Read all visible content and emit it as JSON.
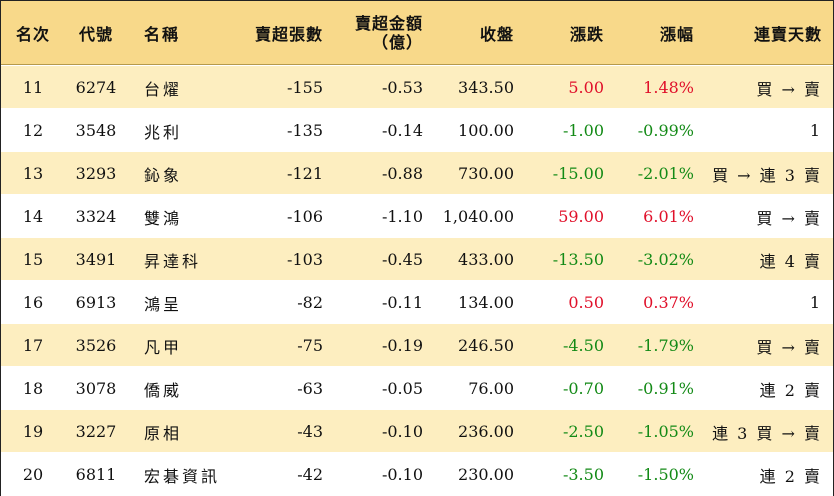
{
  "header": {
    "rank": "名次",
    "code": "代號",
    "name": "名稱",
    "sell_lots": "賣超張數",
    "sell_amount_line1": "賣超金額",
    "sell_amount_line2": "（億）",
    "close": "收盤",
    "change": "漲跌",
    "change_pct": "漲幅",
    "consecutive_days": "連賣天數"
  },
  "colors": {
    "header_bg": "#f8d98a",
    "odd_row_bg": "#fdeec0",
    "up": "#e0102a",
    "down": "#138a16"
  },
  "rows": [
    {
      "rank": "11",
      "code": "6274",
      "name": "台燿",
      "sell_lots": "-155",
      "sell_amount": "-0.53",
      "close": "343.50",
      "change": "5.00",
      "change_pct": "1.48%",
      "trend": "up",
      "consecutive": "買 → 賣"
    },
    {
      "rank": "12",
      "code": "3548",
      "name": "兆利",
      "sell_lots": "-135",
      "sell_amount": "-0.14",
      "close": "100.00",
      "change": "-1.00",
      "change_pct": "-0.99%",
      "trend": "down",
      "consecutive": "1"
    },
    {
      "rank": "13",
      "code": "3293",
      "name": "鈊象",
      "sell_lots": "-121",
      "sell_amount": "-0.88",
      "close": "730.00",
      "change": "-15.00",
      "change_pct": "-2.01%",
      "trend": "down",
      "consecutive": "買 → 連 3 賣"
    },
    {
      "rank": "14",
      "code": "3324",
      "name": "雙鴻",
      "sell_lots": "-106",
      "sell_amount": "-1.10",
      "close": "1,040.00",
      "change": "59.00",
      "change_pct": "6.01%",
      "trend": "up",
      "consecutive": "買 → 賣"
    },
    {
      "rank": "15",
      "code": "3491",
      "name": "昇達科",
      "sell_lots": "-103",
      "sell_amount": "-0.45",
      "close": "433.00",
      "change": "-13.50",
      "change_pct": "-3.02%",
      "trend": "down",
      "consecutive": "連 4 賣"
    },
    {
      "rank": "16",
      "code": "6913",
      "name": "鴻呈",
      "sell_lots": "-82",
      "sell_amount": "-0.11",
      "close": "134.00",
      "change": "0.50",
      "change_pct": "0.37%",
      "trend": "up",
      "consecutive": "1"
    },
    {
      "rank": "17",
      "code": "3526",
      "name": "凡甲",
      "sell_lots": "-75",
      "sell_amount": "-0.19",
      "close": "246.50",
      "change": "-4.50",
      "change_pct": "-1.79%",
      "trend": "down",
      "consecutive": "買 → 賣"
    },
    {
      "rank": "18",
      "code": "3078",
      "name": "僑威",
      "sell_lots": "-63",
      "sell_amount": "-0.05",
      "close": "76.00",
      "change": "-0.70",
      "change_pct": "-0.91%",
      "trend": "down",
      "consecutive": "連 2 賣"
    },
    {
      "rank": "19",
      "code": "3227",
      "name": "原相",
      "sell_lots": "-43",
      "sell_amount": "-0.10",
      "close": "236.00",
      "change": "-2.50",
      "change_pct": "-1.05%",
      "trend": "down",
      "consecutive": "連 3 買 → 賣"
    },
    {
      "rank": "20",
      "code": "6811",
      "name": "宏碁資訊",
      "sell_lots": "-42",
      "sell_amount": "-0.10",
      "close": "230.00",
      "change": "-3.50",
      "change_pct": "-1.50%",
      "trend": "down",
      "consecutive": "連 2 賣"
    }
  ]
}
